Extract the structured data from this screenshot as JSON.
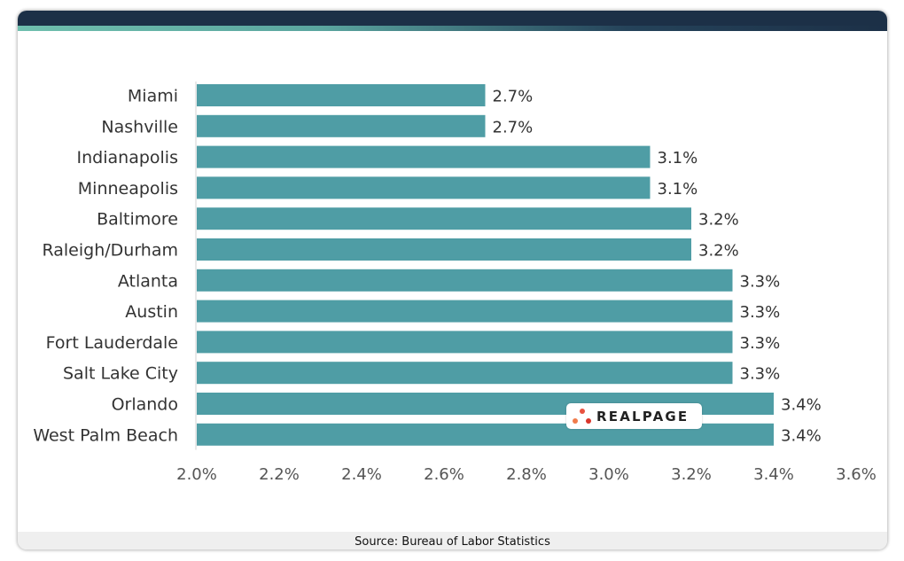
{
  "chart_data": {
    "type": "bar",
    "orientation": "horizontal",
    "categories": [
      "Miami",
      "Nashville",
      "Indianapolis",
      "Minneapolis",
      "Baltimore",
      "Raleigh/Durham",
      "Atlanta",
      "Austin",
      "Fort Lauderdale",
      "Salt Lake City",
      "Orlando",
      "West Palm Beach"
    ],
    "values": [
      2.7,
      2.7,
      3.1,
      3.1,
      3.2,
      3.2,
      3.3,
      3.3,
      3.3,
      3.3,
      3.4,
      3.4
    ],
    "data_labels": [
      "2.7%",
      "2.7%",
      "3.1%",
      "3.1%",
      "3.2%",
      "3.2%",
      "3.3%",
      "3.3%",
      "3.3%",
      "3.3%",
      "3.4%",
      "3.4%"
    ],
    "xlim": [
      2.0,
      3.6
    ],
    "xticks": [
      2.0,
      2.2,
      2.4,
      2.6,
      2.8,
      3.0,
      3.2,
      3.4,
      3.6
    ],
    "xtick_labels": [
      "2.0%",
      "2.2%",
      "2.4%",
      "2.6%",
      "2.8%",
      "3.0%",
      "3.2%",
      "3.4%",
      "3.6%"
    ],
    "grid": false,
    "bar_color": "#4f9da5"
  },
  "footer": {
    "source": "Source: Bureau of Labor Statistics"
  },
  "logo": {
    "text": "REALPAGE",
    "dot_colors": [
      "#e8523f",
      "#f07b4b",
      "#d9362b"
    ]
  },
  "colors": {
    "header": "#1c3047",
    "accent": "#6fbfae"
  }
}
